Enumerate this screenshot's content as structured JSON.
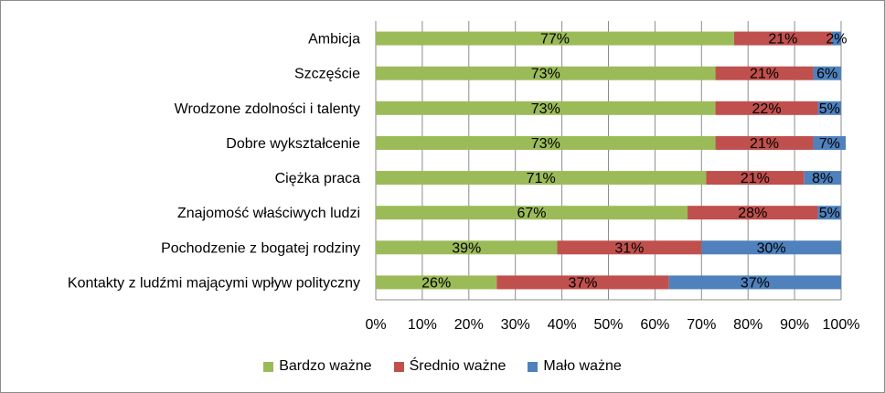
{
  "chart_data": {
    "type": "bar",
    "orientation": "horizontal",
    "stacked": true,
    "categories": [
      "Ambicja",
      "Szczęście",
      "Wrodzone zdolności i talenty",
      "Dobre wykształcenie",
      "Ciężka praca",
      "Znajomość właściwych ludzi",
      "Pochodzenie z bogatej rodziny",
      "Kontakty z ludźmi mającymi wpływ polityczny"
    ],
    "series": [
      {
        "name": "Bardzo ważne",
        "color": "#9bbb59",
        "values": [
          77,
          73,
          73,
          73,
          71,
          67,
          39,
          26
        ],
        "labels": [
          "77%",
          "73%",
          "73%",
          "73%",
          "71%",
          "67%",
          "39%",
          "26%"
        ]
      },
      {
        "name": "Średnio ważne",
        "color": "#c0504d",
        "values": [
          21,
          21,
          22,
          21,
          21,
          28,
          31,
          37
        ],
        "labels": [
          "21%",
          "21%",
          "22%",
          "21%",
          "21%",
          "28%",
          "31%",
          "37%"
        ]
      },
      {
        "name": "Mało ważne",
        "color": "#4f81bd",
        "values": [
          2,
          6,
          5,
          7,
          8,
          5,
          30,
          37
        ],
        "labels": [
          "2%",
          "6%",
          "5%",
          "7%",
          "8%",
          "5%",
          "30%",
          "37%"
        ]
      }
    ],
    "xticks": [
      "0%",
      "10%",
      "20%",
      "30%",
      "40%",
      "50%",
      "60%",
      "70%",
      "80%",
      "90%",
      "100%"
    ],
    "xlim": [
      0,
      100
    ],
    "grid": true,
    "legend_position": "bottom",
    "title": "",
    "xlabel": "",
    "ylabel": ""
  }
}
